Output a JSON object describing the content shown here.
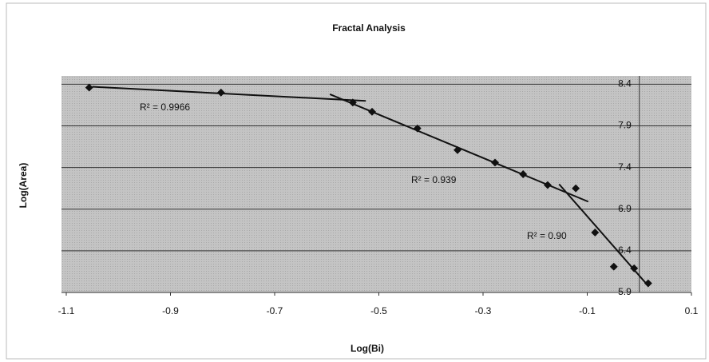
{
  "chart_data": {
    "type": "scatter",
    "title": "Fractal Analysis",
    "x_label": "Log(Bi)",
    "y_label": "Log(Area)",
    "x": [
      -1.056,
      -0.803,
      -0.55,
      -0.513,
      -0.426,
      -0.349,
      -0.277,
      -0.223,
      -0.176,
      -0.122,
      -0.085,
      -0.049,
      -0.01,
      0.017
    ],
    "values": [
      8.36,
      8.3,
      8.18,
      8.07,
      7.87,
      7.61,
      7.46,
      7.32,
      7.19,
      7.15,
      6.62,
      6.21,
      6.19,
      6.01
    ],
    "color": "#111111",
    "trendlines": [
      {
        "label": "R² = 0.9966",
        "x": [
          -1.05,
          -0.525
        ],
        "y": [
          8.37,
          8.2
        ]
      },
      {
        "label": "R² = 0.939",
        "x": [
          -0.594,
          -0.098
        ],
        "y": [
          8.28,
          6.99
        ]
      },
      {
        "label": "R² = 0.90",
        "x": [
          -0.154,
          0.017
        ],
        "y": [
          7.2,
          5.98
        ]
      }
    ],
    "xlim": [
      -1.1,
      0.1
    ],
    "xticks": [
      -1.1,
      -0.9,
      -0.7,
      -0.5,
      -0.3,
      -0.1,
      0.1
    ],
    "ylim": [
      5.9,
      8.5
    ],
    "yticks": [
      5.9,
      6.4,
      6.9,
      7.4,
      7.9,
      8.4
    ],
    "grid": true
  }
}
